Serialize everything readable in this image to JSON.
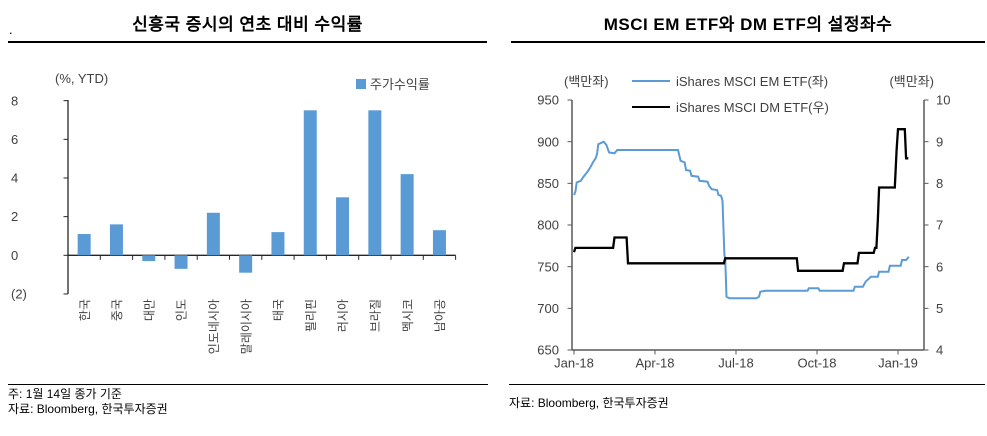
{
  "figure": {
    "left": {
      "corner_dot": ".",
      "title": "신흥국 증시의 연초 대비 수익률",
      "unit": "(%, YTD)",
      "legend_label": "주가수익률",
      "legend_color": "#5B9BD5",
      "note": "주: 1월 14일 종가 기준",
      "source": "자료: Bloomberg, 한국투자증권"
    },
    "right": {
      "title": "MSCI EM ETF와 DM ETF의 설정좌수",
      "unit_left": "(백만좌)",
      "unit_right": "(백만좌)",
      "legend": [
        {
          "label": "iShares MSCI EM ETF(좌)",
          "color": "#5B9BD5"
        },
        {
          "label": "iShares MSCI DM ETF(우)",
          "color": "#000000"
        }
      ],
      "source": "자료: Bloomberg, 한국투자증권"
    }
  },
  "chart_data": [
    {
      "type": "bar",
      "title": "신흥국 증시의 연초 대비 수익률",
      "ylabel": "(%, YTD)",
      "legend": "주가수익률",
      "bar_color": "#5B9BD5",
      "categories": [
        "한국",
        "중국",
        "대만",
        "인도",
        "인도네시아",
        "말레이시아",
        "태국",
        "필리핀",
        "러시아",
        "브라질",
        "멕시코",
        "남아공"
      ],
      "values": [
        1.1,
        1.6,
        -0.3,
        -0.7,
        2.2,
        -0.9,
        1.2,
        7.5,
        3.0,
        7.5,
        4.2,
        1.3
      ],
      "ylim": [
        -2,
        8
      ],
      "ytick_values": [
        8,
        6,
        4,
        2,
        0,
        -2
      ],
      "ytick_labels": [
        "8",
        "6",
        "4",
        "2",
        "0",
        "(2)"
      ],
      "grid": false,
      "legend_position": "top-right"
    },
    {
      "type": "line",
      "title": "MSCI EM ETF와 DM ETF의 설정좌수",
      "xtick_months": [
        0,
        3,
        6,
        9,
        12
      ],
      "xtick_labels": [
        "Jan-18",
        "Apr-18",
        "Jul-18",
        "Oct-18",
        "Jan-19"
      ],
      "x_range_months": [
        0,
        13
      ],
      "axis_left": {
        "unit": "(백만좌)",
        "min": 650,
        "max": 950,
        "step": 50
      },
      "axis_right": {
        "unit": "(백만좌)",
        "min": 4,
        "max": 10,
        "step": 1
      },
      "grid": false,
      "legend_position": "top",
      "series": [
        {
          "name": "iShares MSCI EM ETF(좌)",
          "axis": "left",
          "color": "#5B9BD5",
          "points": [
            [
              0,
              836
            ],
            [
              0.05,
              840
            ],
            [
              0.1,
              851
            ],
            [
              0.25,
              853
            ],
            [
              0.35,
              858
            ],
            [
              0.5,
              864
            ],
            [
              0.6,
              869
            ],
            [
              0.7,
              875
            ],
            [
              0.8,
              880
            ],
            [
              0.85,
              885
            ],
            [
              0.9,
              897
            ],
            [
              1.1,
              900
            ],
            [
              1.2,
              896
            ],
            [
              1.3,
              887
            ],
            [
              1.5,
              886
            ],
            [
              1.6,
              890
            ],
            [
              3.85,
              890
            ],
            [
              3.95,
              877
            ],
            [
              4.1,
              875
            ],
            [
              4.15,
              866
            ],
            [
              4.3,
              865
            ],
            [
              4.35,
              859
            ],
            [
              4.6,
              858
            ],
            [
              4.65,
              853
            ],
            [
              4.95,
              852
            ],
            [
              5.0,
              847
            ],
            [
              5.1,
              843
            ],
            [
              5.3,
              842
            ],
            [
              5.35,
              836
            ],
            [
              5.45,
              835
            ],
            [
              5.5,
              829
            ],
            [
              5.57,
              764
            ],
            [
              5.6,
              760
            ],
            [
              5.65,
              714
            ],
            [
              5.75,
              712
            ],
            [
              6.75,
              712
            ],
            [
              6.85,
              714
            ],
            [
              6.9,
              720
            ],
            [
              7.1,
              721
            ],
            [
              8.65,
              721
            ],
            [
              8.7,
              724
            ],
            [
              9.05,
              724
            ],
            [
              9.1,
              721
            ],
            [
              10.35,
              721
            ],
            [
              10.4,
              726
            ],
            [
              10.7,
              726
            ],
            [
              10.8,
              732
            ],
            [
              11.0,
              738
            ],
            [
              11.25,
              738
            ],
            [
              11.3,
              744
            ],
            [
              11.65,
              744
            ],
            [
              11.7,
              751
            ],
            [
              12.1,
              751
            ],
            [
              12.15,
              758
            ],
            [
              12.3,
              758
            ],
            [
              12.4,
              762
            ]
          ]
        },
        {
          "name": "iShares MSCI DM ETF(우)",
          "axis": "right",
          "color": "#000000",
          "points": [
            [
              0,
              6.35
            ],
            [
              0.05,
              6.45
            ],
            [
              1.45,
              6.45
            ],
            [
              1.5,
              6.7
            ],
            [
              1.95,
              6.7
            ],
            [
              2.0,
              6.08
            ],
            [
              5.55,
              6.08
            ],
            [
              5.6,
              6.2
            ],
            [
              8.25,
              6.2
            ],
            [
              8.3,
              5.9
            ],
            [
              9.95,
              5.9
            ],
            [
              10.0,
              6.08
            ],
            [
              10.5,
              6.08
            ],
            [
              10.55,
              6.33
            ],
            [
              11.1,
              6.33
            ],
            [
              11.15,
              6.45
            ],
            [
              11.2,
              6.45
            ],
            [
              11.25,
              7.1
            ],
            [
              11.3,
              7.9
            ],
            [
              11.88,
              7.9
            ],
            [
              11.95,
              8.8
            ],
            [
              12.0,
              9.3
            ],
            [
              12.25,
              9.3
            ],
            [
              12.3,
              8.6
            ],
            [
              12.38,
              8.6
            ]
          ]
        }
      ]
    }
  ]
}
